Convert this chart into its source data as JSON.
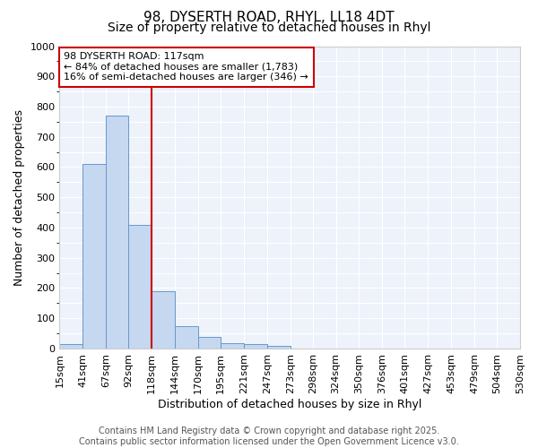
{
  "title1": "98, DYSERTH ROAD, RHYL, LL18 4DT",
  "title2": "Size of property relative to detached houses in Rhyl",
  "xlabel": "Distribution of detached houses by size in Rhyl",
  "ylabel": "Number of detached properties",
  "bar_values": [
    15,
    610,
    770,
    410,
    190,
    75,
    38,
    18,
    15,
    10,
    0,
    0,
    0,
    0,
    0,
    0,
    0,
    0,
    0,
    0
  ],
  "bin_edges": [
    15,
    41,
    67,
    92,
    118,
    144,
    170,
    195,
    221,
    247,
    273,
    298,
    324,
    350,
    376,
    401,
    427,
    453,
    479,
    504,
    530
  ],
  "bar_color": "#c5d8f0",
  "bar_edge_color": "#6699cc",
  "property_line_x": 118,
  "property_line_color": "#cc0000",
  "annotation_text": "98 DYSERTH ROAD: 117sqm\n← 84% of detached houses are smaller (1,783)\n16% of semi-detached houses are larger (346) →",
  "annotation_box_facecolor": "#ffffff",
  "annotation_box_edgecolor": "#cc0000",
  "ylim": [
    0,
    1000
  ],
  "yticks": [
    0,
    100,
    200,
    300,
    400,
    500,
    600,
    700,
    800,
    900,
    1000
  ],
  "footer_text": "Contains HM Land Registry data © Crown copyright and database right 2025.\nContains public sector information licensed under the Open Government Licence v3.0.",
  "fig_bg_color": "#ffffff",
  "plot_bg_color": "#eef2fa",
  "grid_color": "#ffffff",
  "title_fontsize": 11,
  "subtitle_fontsize": 10,
  "axis_label_fontsize": 9,
  "tick_fontsize": 8,
  "footer_fontsize": 7,
  "annotation_fontsize": 8
}
